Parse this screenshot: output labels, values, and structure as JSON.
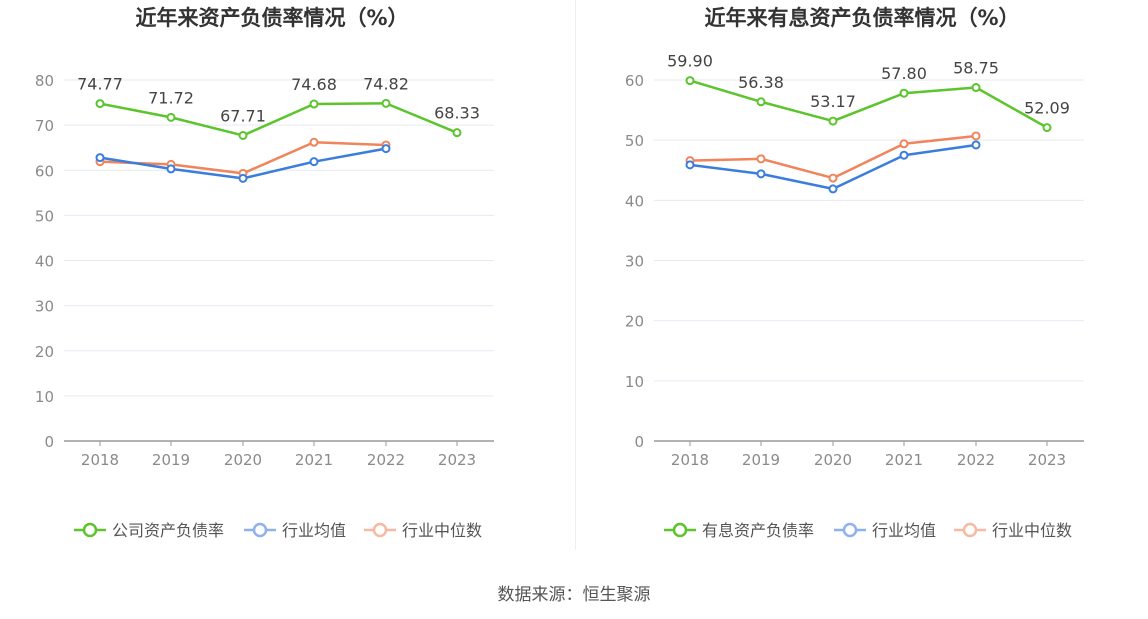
{
  "source_label": "数据来源：恒生聚源",
  "colors": {
    "company": "#5cc42c",
    "industry_avg": "#3b7ddd",
    "industry_median": "#f0845a",
    "legend_avg": "#8fb2ee",
    "legend_median": "#f7b9a1",
    "grid": "#e6e9f2",
    "axis": "#999999",
    "tick_text": "#8a8a8a",
    "title_text": "#333333",
    "label_text": "#444444"
  },
  "chart_data": [
    {
      "type": "line",
      "title": "近年来资产负债率情况（%）",
      "xlabel": "",
      "ylabel": "",
      "categories": [
        "2018",
        "2019",
        "2020",
        "2021",
        "2022",
        "2023"
      ],
      "ylim": [
        0,
        80
      ],
      "yticks": [
        "0",
        "10",
        "20",
        "30",
        "40",
        "50",
        "60",
        "70",
        "80"
      ],
      "grid": true,
      "legend_position": "bottom-center",
      "series": [
        {
          "name": "公司资产负债率",
          "color_key": "company",
          "values": [
            74.77,
            71.72,
            67.71,
            74.68,
            74.82,
            68.33
          ],
          "labels": [
            "74.77",
            "71.72",
            "67.71",
            "74.68",
            "74.82",
            "68.33"
          ]
        },
        {
          "name": "行业均值",
          "color_key": "industry_avg",
          "values": [
            62.8,
            60.3,
            58.2,
            61.9,
            64.8,
            null
          ]
        },
        {
          "name": "行业中位数",
          "color_key": "industry_median",
          "values": [
            61.9,
            61.3,
            59.3,
            66.2,
            65.6,
            null
          ]
        }
      ]
    },
    {
      "type": "line",
      "title": "近年来有息资产负债率情况（%）",
      "xlabel": "",
      "ylabel": "",
      "categories": [
        "2018",
        "2019",
        "2020",
        "2021",
        "2022",
        "2023"
      ],
      "ylim": [
        0,
        60
      ],
      "yticks": [
        "0",
        "10",
        "20",
        "30",
        "40",
        "50",
        "60"
      ],
      "grid": true,
      "legend_position": "bottom-center",
      "series": [
        {
          "name": "有息资产负债率",
          "color_key": "company",
          "values": [
            59.9,
            56.38,
            53.17,
            57.8,
            58.75,
            52.09
          ],
          "labels": [
            "59.90",
            "56.38",
            "53.17",
            "57.80",
            "58.75",
            "52.09"
          ]
        },
        {
          "name": "行业均值",
          "color_key": "industry_avg",
          "values": [
            45.9,
            44.4,
            41.9,
            47.5,
            49.2,
            null
          ]
        },
        {
          "name": "行业中位数",
          "color_key": "industry_median",
          "values": [
            46.6,
            46.9,
            43.7,
            49.4,
            50.7,
            null
          ]
        }
      ]
    }
  ]
}
